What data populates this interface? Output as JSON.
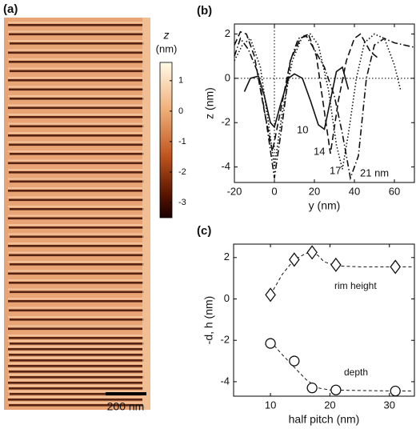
{
  "chart_data": [
    {
      "type": "image",
      "label": "(a)",
      "scale_bar": "200 nm",
      "colorbar": {
        "title": [
          "z",
          "(nm)"
        ],
        "lim": [
          -3.5,
          1.6
        ],
        "ticks": [
          1,
          0,
          -1,
          -2,
          -3
        ]
      }
    },
    {
      "type": "line",
      "label": "(b)",
      "xlabel": "y (nm)",
      "ylabel": "z (nm)",
      "xlim": [
        -20,
        70
      ],
      "xticks": [
        -20,
        0,
        20,
        40,
        60
      ],
      "ylim": [
        -4.7,
        2.45
      ],
      "yticks": [
        -4,
        -2,
        0,
        2
      ],
      "series": [
        {
          "name": "10",
          "color": "#111111",
          "style": "solid",
          "x": [
            -15,
            -12,
            -8,
            -5,
            -2,
            0,
            3,
            7,
            10,
            14,
            18,
            22,
            25,
            28,
            31,
            34,
            37
          ],
          "values": [
            -0.6,
            0,
            0.1,
            -0.8,
            -2.0,
            -2.2,
            -1.2,
            0,
            0.2,
            0,
            -1.0,
            -2.1,
            -2.3,
            -1.0,
            0.3,
            0.5,
            -0.5
          ]
        },
        {
          "name": "14",
          "color": "#111111",
          "style": "dashed",
          "x": [
            -20,
            -17,
            -14,
            -10,
            -5,
            -1,
            3,
            8,
            13,
            17,
            21,
            25,
            28,
            32,
            36,
            40,
            43,
            48,
            52
          ],
          "values": [
            1.5,
            2.1,
            2.0,
            1.0,
            -1.5,
            -3.3,
            -1.5,
            0.8,
            1.8,
            2.0,
            1.0,
            -1.5,
            -3.4,
            -1.0,
            0.8,
            1.8,
            2.0,
            1.2,
            0.9
          ]
        },
        {
          "name": "17",
          "color": "#111111",
          "style": "dotted",
          "x": [
            -20,
            -16,
            -12,
            -7,
            -3,
            0,
            4,
            9,
            14,
            18,
            22,
            27,
            31,
            34,
            37,
            41,
            45,
            50,
            55,
            60,
            63
          ],
          "values": [
            0.8,
            1.5,
            1.8,
            0.5,
            -2.0,
            -4.0,
            -1.5,
            0.8,
            1.9,
            2.0,
            1.5,
            -0.5,
            -3.0,
            -4.1,
            -2.5,
            0,
            1.6,
            2.0,
            1.8,
            0.6,
            -0.5
          ]
        },
        {
          "name": "21 nm",
          "color": "#111111",
          "style": "dashdot",
          "x": [
            -20,
            -17,
            -13,
            -8,
            -4,
            0,
            4,
            8,
            12,
            16,
            20,
            25,
            30,
            34,
            38,
            42,
            46,
            50,
            55,
            60,
            65,
            70
          ],
          "values": [
            1.0,
            1.8,
            1.3,
            0.2,
            -2.0,
            -4.5,
            -2.0,
            0.8,
            1.8,
            1.9,
            1.3,
            0.5,
            -0.8,
            -2.5,
            -4.5,
            -3.5,
            0,
            1.5,
            1.8,
            1.6,
            1.5,
            1.4
          ]
        }
      ]
    },
    {
      "type": "scatter",
      "label": "(c)",
      "xlabel": "half pitch (nm)",
      "ylabel": "-d, h (nm)",
      "xlim": [
        3.8,
        34.2
      ],
      "xticks": [
        10,
        20,
        30
      ],
      "ylim": [
        -4.7,
        2.65
      ],
      "yticks": [
        -4,
        -2,
        0,
        2
      ],
      "series": [
        {
          "name": "rim height",
          "color": "#111111",
          "marker": "diamond",
          "x": [
            10,
            14,
            17,
            21,
            31
          ],
          "values": [
            0.2,
            1.9,
            2.25,
            1.65,
            1.55
          ],
          "fit": {
            "x": [
              10,
              12,
              14,
              16,
              17,
              18,
              19,
              21,
              25,
              31,
              34
            ],
            "values": [
              0.2,
              1.2,
              1.9,
              2.2,
              2.25,
              2.1,
              1.8,
              1.6,
              1.55,
              1.55,
              1.55
            ]
          }
        },
        {
          "name": "depth",
          "color": "#111111",
          "marker": "circle",
          "x": [
            10,
            14,
            17,
            21,
            31
          ],
          "values": [
            -2.15,
            -3.0,
            -4.3,
            -4.4,
            -4.45
          ],
          "fit": {
            "x": [
              10,
              12,
              14,
              16,
              18,
              20,
              24,
              31,
              34
            ],
            "values": [
              -2.05,
              -2.7,
              -3.3,
              -3.9,
              -4.3,
              -4.4,
              -4.42,
              -4.45,
              -4.45
            ]
          }
        }
      ]
    }
  ]
}
